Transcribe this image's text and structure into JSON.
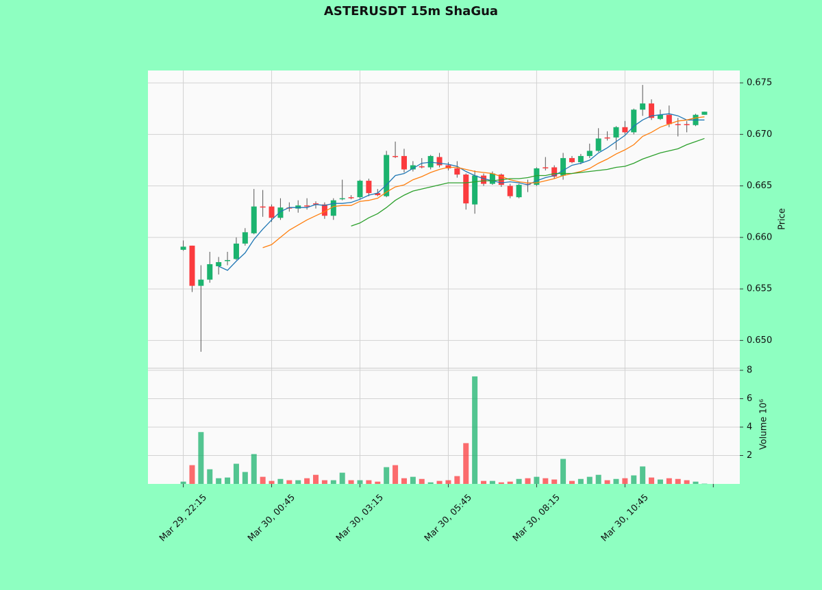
{
  "chart_data": {
    "type": "candlestick",
    "title": "ASTERUSDT 15m ShaGua",
    "ylabel": "Price",
    "volume_ylabel": "Volume  10⁶",
    "up_color": "#1bb36e",
    "down_color": "#fb3b3e",
    "wick_color": "#555555",
    "grid": true,
    "xlim": [
      -4,
      63
    ],
    "xticks": [
      {
        "value": 0,
        "label": "Mar 29, 22:15"
      },
      {
        "value": 10,
        "label": "Mar 30, 00:45"
      },
      {
        "value": 20,
        "label": "Mar 30, 03:15"
      },
      {
        "value": 30,
        "label": "Mar 30, 05:45"
      },
      {
        "value": 40,
        "label": "Mar 30, 08:15"
      },
      {
        "value": 50,
        "label": "Mar 30, 10:45"
      },
      60
    ],
    "ylim": [
      0.6475,
      0.6762
    ],
    "yticks": [
      {
        "value": 0.65,
        "label": "0.650"
      },
      0.655,
      {
        "value": 0.66,
        "label": "0.660"
      },
      0.665,
      {
        "value": 0.67,
        "label": "0.670"
      },
      0.675
    ],
    "volume_ylim": [
      0,
      8
    ],
    "volume_yticks": [
      2,
      4,
      6,
      8
    ],
    "open": [
      0.6588,
      0.6592,
      0.6553,
      0.6559,
      0.6572,
      0.6577,
      0.6579,
      0.6594,
      0.6604,
      0.663,
      0.663,
      0.6619,
      0.6629,
      0.6628,
      0.6631,
      0.6633,
      0.6632,
      0.6621,
      0.6637,
      0.6639,
      0.6639,
      0.6655,
      0.6643,
      0.664,
      0.6679,
      0.6679,
      0.6666,
      0.6669,
      0.6668,
      0.6678,
      0.667,
      0.6667,
      0.6661,
      0.6632,
      0.666,
      0.6652,
      0.6661,
      0.665,
      0.6639,
      0.6652,
      0.6651,
      0.6668,
      0.6668,
      0.666,
      0.6677,
      0.6673,
      0.6679,
      0.6684,
      0.6697,
      0.6697,
      0.6707,
      0.6702,
      0.6724,
      0.673,
      0.6715,
      0.6719,
      0.671,
      0.671,
      0.6709,
      0.6719
    ],
    "high": [
      0.6597,
      0.6592,
      0.6573,
      0.6586,
      0.6581,
      0.6586,
      0.66,
      0.6609,
      0.6647,
      0.6646,
      0.6632,
      0.6638,
      0.6634,
      0.6636,
      0.6638,
      0.6635,
      0.6634,
      0.6638,
      0.6656,
      0.6641,
      0.6656,
      0.6657,
      0.6647,
      0.6684,
      0.6693,
      0.6686,
      0.6674,
      0.6677,
      0.668,
      0.6682,
      0.6673,
      0.6674,
      0.6662,
      0.6665,
      0.6662,
      0.6664,
      0.6662,
      0.6652,
      0.6652,
      0.6656,
      0.6668,
      0.6678,
      0.667,
      0.6682,
      0.6679,
      0.6681,
      0.6691,
      0.6706,
      0.6703,
      0.6708,
      0.6713,
      0.6725,
      0.6748,
      0.6734,
      0.6724,
      0.6728,
      0.6716,
      0.6713,
      0.672,
      0.6722
    ],
    "low": [
      0.6587,
      0.6547,
      0.6489,
      0.6556,
      0.6564,
      0.6573,
      0.6578,
      0.6592,
      0.6603,
      0.662,
      0.6615,
      0.6617,
      0.6625,
      0.6624,
      0.6627,
      0.6628,
      0.6618,
      0.6617,
      0.6636,
      0.6637,
      0.6637,
      0.664,
      0.664,
      0.6639,
      0.6677,
      0.6663,
      0.6664,
      0.6667,
      0.6666,
      0.6668,
      0.6665,
      0.6658,
      0.6627,
      0.6623,
      0.665,
      0.6651,
      0.6649,
      0.6638,
      0.6638,
      0.6644,
      0.665,
      0.6665,
      0.6657,
      0.6656,
      0.6672,
      0.6671,
      0.6677,
      0.6683,
      0.6694,
      0.6685,
      0.67,
      0.67,
      0.6718,
      0.6714,
      0.6714,
      0.6707,
      0.6698,
      0.6702,
      0.6708,
      0.6719
    ],
    "close": [
      0.6591,
      0.6553,
      0.6559,
      0.6574,
      0.6576,
      0.6578,
      0.6594,
      0.6605,
      0.663,
      0.6629,
      0.6619,
      0.6629,
      0.6628,
      0.6631,
      0.663,
      0.6632,
      0.6621,
      0.6636,
      0.6638,
      0.6638,
      0.6655,
      0.6643,
      0.6641,
      0.668,
      0.6678,
      0.6666,
      0.667,
      0.6668,
      0.6679,
      0.667,
      0.6667,
      0.6661,
      0.6633,
      0.666,
      0.6652,
      0.6662,
      0.6651,
      0.664,
      0.6651,
      0.6651,
      0.6667,
      0.6667,
      0.6659,
      0.6677,
      0.6673,
      0.6679,
      0.6684,
      0.6696,
      0.6696,
      0.6707,
      0.6702,
      0.6724,
      0.673,
      0.6716,
      0.6719,
      0.671,
      0.6709,
      0.6709,
      0.6719,
      0.6722
    ],
    "volume": [
      0.16,
      1.32,
      3.65,
      1.03,
      0.4,
      0.45,
      1.42,
      0.84,
      2.1,
      0.5,
      0.21,
      0.35,
      0.26,
      0.26,
      0.4,
      0.64,
      0.26,
      0.26,
      0.79,
      0.26,
      0.26,
      0.26,
      0.16,
      1.18,
      1.32,
      0.4,
      0.5,
      0.35,
      0.11,
      0.21,
      0.26,
      0.55,
      2.87,
      7.57,
      0.21,
      0.21,
      0.11,
      0.16,
      0.35,
      0.4,
      0.5,
      0.4,
      0.31,
      1.76,
      0.21,
      0.35,
      0.5,
      0.64,
      0.26,
      0.35,
      0.4,
      0.6,
      1.23,
      0.45,
      0.31,
      0.4,
      0.35,
      0.26,
      0.16,
      0.02
    ],
    "moving_averages": [
      {
        "color": "#1f77b4",
        "values": [
          null,
          null,
          null,
          null,
          0.6572,
          0.6568,
          0.6577,
          0.6585,
          0.6598,
          0.6608,
          0.6617,
          0.6625,
          0.6629,
          0.6629,
          0.6629,
          0.6632,
          0.6631,
          0.6633,
          0.6633,
          0.6634,
          0.6637,
          0.6641,
          0.6643,
          0.6651,
          0.666,
          0.6662,
          0.6667,
          0.6672,
          0.6673,
          0.6672,
          0.6671,
          0.6669,
          0.6664,
          0.666,
          0.6657,
          0.6655,
          0.6653,
          0.6654,
          0.6653,
          0.6651,
          0.6655,
          0.6658,
          0.666,
          0.6665,
          0.667,
          0.6672,
          0.6675,
          0.6682,
          0.6687,
          0.6693,
          0.6699,
          0.6708,
          0.6714,
          0.6718,
          0.6719,
          0.672,
          0.6718,
          0.6714,
          0.6714,
          0.6714
        ]
      },
      {
        "color": "#ff7f0e",
        "values": [
          null,
          null,
          null,
          null,
          null,
          null,
          null,
          null,
          null,
          0.659,
          0.6593,
          0.66,
          0.6607,
          0.6612,
          0.6617,
          0.6621,
          0.6625,
          0.663,
          0.6631,
          0.6631,
          0.6635,
          0.6636,
          0.6638,
          0.6644,
          0.6649,
          0.6651,
          0.6656,
          0.6659,
          0.6663,
          0.6666,
          0.6668,
          0.6668,
          0.6666,
          0.6664,
          0.6663,
          0.6662,
          0.6659,
          0.6656,
          0.6654,
          0.6653,
          0.6653,
          0.6655,
          0.6657,
          0.666,
          0.6662,
          0.6664,
          0.6667,
          0.6672,
          0.6676,
          0.6681,
          0.6685,
          0.669,
          0.6698,
          0.6702,
          0.6707,
          0.671,
          0.6713,
          0.6714,
          0.6716,
          0.6717
        ]
      },
      {
        "color": "#2ca02c",
        "values": [
          null,
          null,
          null,
          null,
          null,
          null,
          null,
          null,
          null,
          null,
          null,
          null,
          null,
          null,
          null,
          null,
          null,
          null,
          null,
          0.6611,
          0.6614,
          0.6619,
          0.6623,
          0.6629,
          0.6636,
          0.6641,
          0.6645,
          0.6647,
          0.6649,
          0.6651,
          0.6653,
          0.6653,
          0.6653,
          0.6654,
          0.6655,
          0.6655,
          0.6656,
          0.6657,
          0.6657,
          0.6658,
          0.666,
          0.666,
          0.6662,
          0.6662,
          0.6662,
          0.6663,
          0.6664,
          0.6665,
          0.6666,
          0.6668,
          0.6669,
          0.6672,
          0.6676,
          0.6679,
          0.6682,
          0.6684,
          0.6686,
          0.669,
          0.6693,
          0.6696
        ]
      }
    ]
  }
}
